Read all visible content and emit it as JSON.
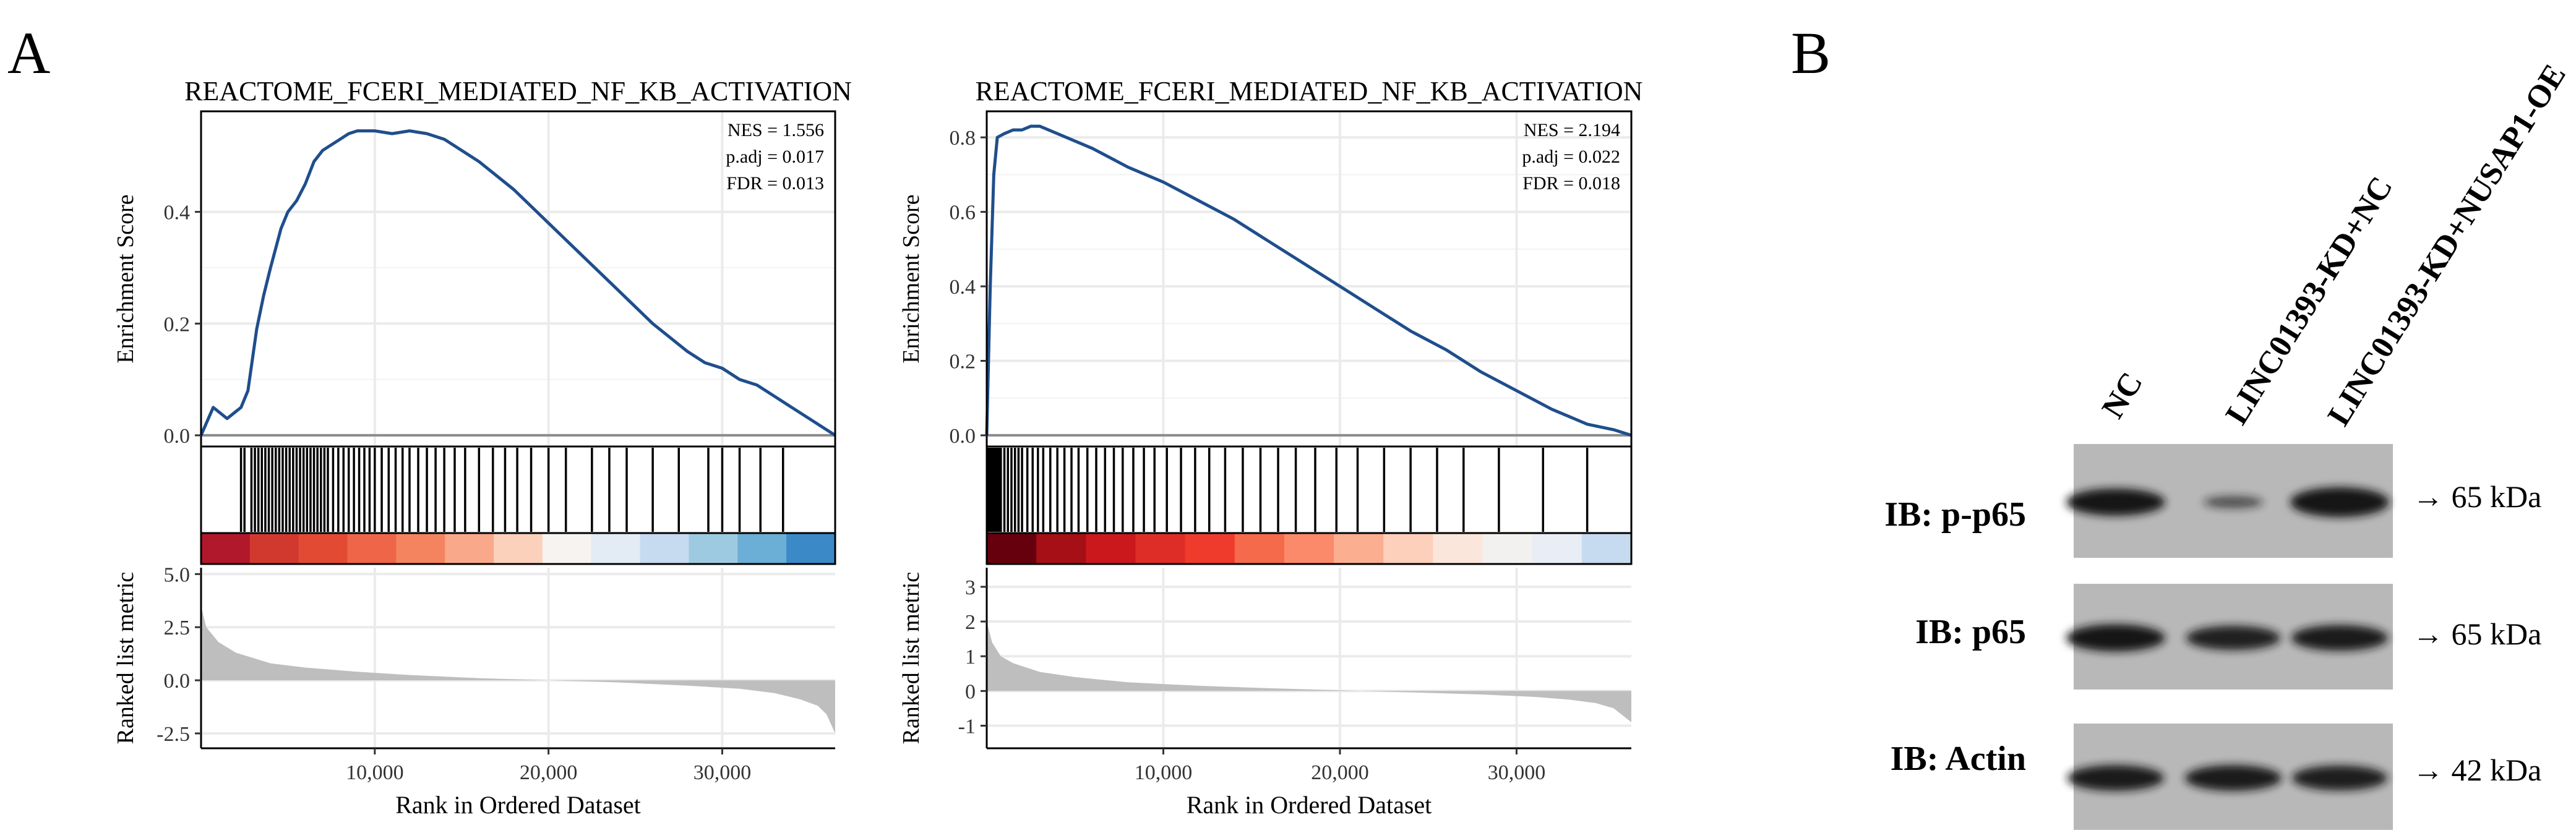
{
  "panel_labels": {
    "a": "A",
    "b": "B"
  },
  "chart_data": [
    {
      "type": "line",
      "title": "REACTOME_FCERI_MEDIATED_NF_KB_ACTIVATION",
      "ylabel": "Enrichment Score",
      "xlabel": "Rank in Ordered Dataset",
      "ylim": [
        -0.02,
        0.58
      ],
      "yticks": [
        0.0,
        0.2,
        0.4
      ],
      "ytick_labels": [
        "0.0",
        "0.2",
        "0.4"
      ],
      "xlim": [
        0,
        36500
      ],
      "xticks": [
        10000,
        20000,
        30000
      ],
      "xtick_labels": [
        "10,000",
        "20,000",
        "30,000"
      ],
      "stats": {
        "nes": "NES = 1.556",
        "padj": "p.adj = 0.017",
        "fdr": "FDR = 0.013"
      },
      "es_curve": {
        "x": [
          0,
          700,
          1500,
          2300,
          2700,
          3200,
          3600,
          4000,
          4600,
          5000,
          5500,
          6000,
          6500,
          7000,
          7500,
          8000,
          8500,
          9000,
          10000,
          11000,
          12000,
          13000,
          14000,
          16000,
          18000,
          20000,
          22000,
          24000,
          26000,
          28000,
          29000,
          30000,
          31000,
          32000,
          33000,
          34000,
          35000,
          36500
        ],
        "y": [
          0.0,
          0.05,
          0.03,
          0.05,
          0.08,
          0.19,
          0.25,
          0.3,
          0.37,
          0.4,
          0.42,
          0.45,
          0.49,
          0.51,
          0.52,
          0.53,
          0.54,
          0.545,
          0.545,
          0.54,
          0.545,
          0.54,
          0.53,
          0.49,
          0.44,
          0.38,
          0.32,
          0.26,
          0.2,
          0.15,
          0.13,
          0.12,
          0.1,
          0.09,
          0.07,
          0.05,
          0.03,
          0.0
        ]
      },
      "hit_ranks": [
        2300,
        2500,
        2900,
        3100,
        3300,
        3500,
        3700,
        3900,
        4100,
        4300,
        4500,
        4700,
        4900,
        5100,
        5300,
        5500,
        5700,
        5900,
        6100,
        6300,
        6500,
        6700,
        6900,
        7100,
        7300,
        7600,
        7900,
        8200,
        8500,
        8800,
        9100,
        9400,
        9700,
        10000,
        10400,
        10800,
        11200,
        11600,
        12000,
        12500,
        13000,
        13500,
        14000,
        14600,
        15200,
        16000,
        16800,
        17500,
        18200,
        19000,
        20000,
        21000,
        22500,
        23500,
        24500,
        26000,
        27500,
        29200,
        30000,
        31000,
        32200,
        33500
      ],
      "heat_colors": [
        "#b2182b",
        "#d1382e",
        "#e34a33",
        "#ef6548",
        "#f4845f",
        "#f9a98a",
        "#fbd1bc",
        "#f7f3f0",
        "#e3ebf5",
        "#c6dbef",
        "#9ecae1",
        "#6baed6",
        "#3c89c8"
      ],
      "ranked_metric": {
        "ylabel": "Ranked list metric",
        "ylim": [
          -3.2,
          5.3
        ],
        "yticks": [
          -2.5,
          0.0,
          2.5,
          5.0
        ],
        "ytick_labels": [
          "-2.5",
          "0.0",
          "2.5",
          "5.0"
        ],
        "x": [
          0,
          300,
          1000,
          2000,
          4000,
          6000,
          9000,
          12000,
          16000,
          20000,
          24000,
          28000,
          31000,
          33000,
          34500,
          35500,
          36000,
          36500
        ],
        "y": [
          3.5,
          2.5,
          1.8,
          1.3,
          0.8,
          0.6,
          0.4,
          0.25,
          0.1,
          0.0,
          -0.1,
          -0.25,
          -0.4,
          -0.6,
          -0.9,
          -1.2,
          -1.6,
          -2.5
        ]
      }
    },
    {
      "type": "line",
      "title": "REACTOME_FCERI_MEDIATED_NF_KB_ACTIVATION",
      "ylabel": "Enrichment Score",
      "xlabel": "Rank in Ordered Dataset",
      "ylim": [
        -0.03,
        0.87
      ],
      "yticks": [
        0.0,
        0.2,
        0.4,
        0.6,
        0.8
      ],
      "ytick_labels": [
        "0.0",
        "0.2",
        "0.4",
        "0.6",
        "0.8"
      ],
      "xlim": [
        0,
        36500
      ],
      "xticks": [
        10000,
        20000,
        30000
      ],
      "xtick_labels": [
        "10,000",
        "20,000",
        "30,000"
      ],
      "stats": {
        "nes": "NES = 2.194",
        "padj": "p.adj = 0.022",
        "fdr": "FDR = 0.018"
      },
      "es_curve": {
        "x": [
          0,
          200,
          400,
          600,
          1000,
          1500,
          2000,
          2500,
          3000,
          4000,
          6000,
          8000,
          10000,
          12000,
          14000,
          16000,
          18000,
          20000,
          22000,
          24000,
          26000,
          28000,
          30000,
          32000,
          34000,
          35500,
          36500
        ],
        "y": [
          0.0,
          0.4,
          0.7,
          0.8,
          0.81,
          0.82,
          0.82,
          0.83,
          0.83,
          0.81,
          0.77,
          0.72,
          0.68,
          0.63,
          0.58,
          0.52,
          0.46,
          0.4,
          0.34,
          0.28,
          0.23,
          0.17,
          0.12,
          0.07,
          0.03,
          0.015,
          0.0
        ]
      },
      "hit_ranks": [
        100,
        200,
        300,
        400,
        500,
        600,
        700,
        800,
        1000,
        1200,
        1400,
        1600,
        1800,
        2000,
        2300,
        2600,
        2900,
        3200,
        3600,
        4000,
        4400,
        4800,
        5200,
        5700,
        6200,
        6700,
        7200,
        7700,
        8300,
        8900,
        9500,
        10200,
        11000,
        11800,
        12600,
        13500,
        14500,
        15500,
        16500,
        17500,
        18600,
        19800,
        21000,
        22500,
        24000,
        25500,
        27000,
        29000,
        31500,
        34000
      ],
      "heat_colors": [
        "#67000d",
        "#a50f15",
        "#cb181d",
        "#de2d26",
        "#ef3b2c",
        "#f46a4b",
        "#fb8a6a",
        "#fcae91",
        "#fdd0bc",
        "#fbe6dc",
        "#f3f1f0",
        "#e9edf5",
        "#c6dbef"
      ],
      "ranked_metric": {
        "ylabel": "Ranked list metric",
        "ylim": [
          -1.65,
          3.55
        ],
        "yticks": [
          -1,
          0,
          1,
          2,
          3
        ],
        "ytick_labels": [
          "-1",
          "0",
          "1",
          "2",
          "3"
        ],
        "x": [
          0,
          300,
          800,
          1500,
          3000,
          5000,
          8000,
          12000,
          16000,
          20000,
          24000,
          28000,
          31000,
          33000,
          34500,
          35500,
          36500
        ],
        "y": [
          2.0,
          1.4,
          1.0,
          0.8,
          0.55,
          0.4,
          0.25,
          0.15,
          0.08,
          0.02,
          -0.04,
          -0.1,
          -0.17,
          -0.25,
          -0.35,
          -0.5,
          -0.9
        ]
      }
    }
  ],
  "western_blot": {
    "lanes": [
      "NC",
      "LINC01393-KD+NC",
      "LINC01393-KD+NUSAP1-OE"
    ],
    "rows": [
      {
        "label": "IB: p-p65",
        "size": "→ 65 kDa",
        "intensities": [
          1.0,
          0.45,
          1.1
        ]
      },
      {
        "label": "IB: p65",
        "size": "→ 65 kDa",
        "intensities": [
          1.0,
          0.9,
          0.95
        ]
      },
      {
        "label": "IB: Actin",
        "size": "→ 42 kDa",
        "intensities": [
          0.95,
          0.95,
          0.92
        ]
      }
    ]
  }
}
